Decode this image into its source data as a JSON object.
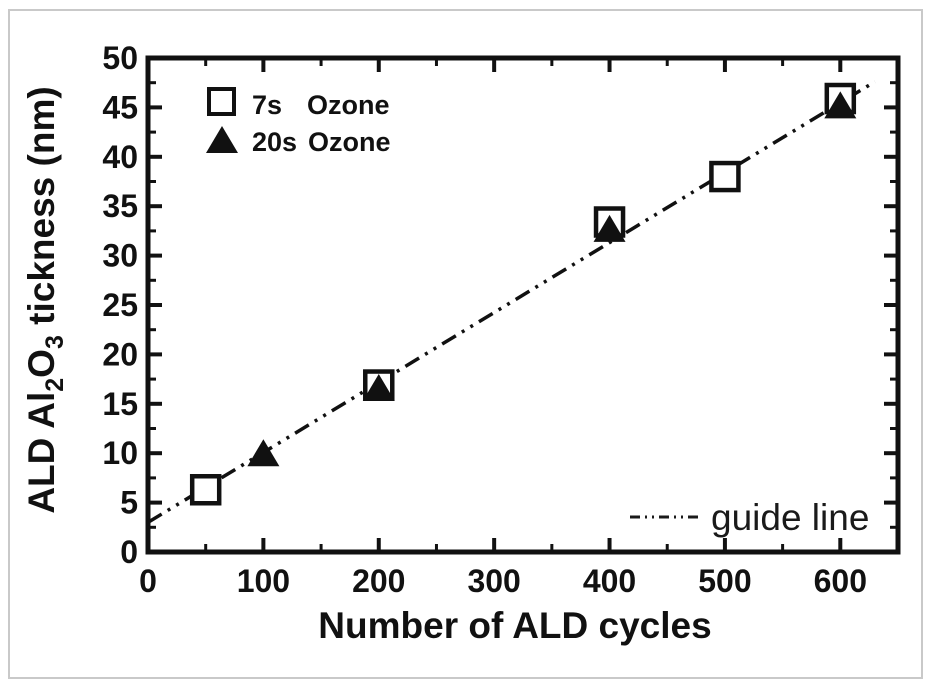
{
  "figure": {
    "background": "#ffffff",
    "border_color": "#c9c9c9",
    "ink_color": "#111111"
  },
  "chart_data": {
    "type": "scatter",
    "title": "",
    "xlabel": "Number of ALD cycles",
    "ylabel_plain": "ALD Al2O3 tickness (nm)",
    "ylabel_parts": {
      "pre": "ALD Al",
      "sub1": "2",
      "mid": "O",
      "sub2": "3",
      "post": " tickness (nm)"
    },
    "xlim": [
      0,
      650
    ],
    "ylim": [
      0,
      50
    ],
    "x_major_ticks": [
      0,
      100,
      200,
      300,
      400,
      500,
      600
    ],
    "x_minor_step": 50,
    "y_major_ticks": [
      0,
      5,
      10,
      15,
      20,
      25,
      30,
      35,
      40,
      45,
      50
    ],
    "y_minor_step": 2.5,
    "grid": false,
    "legend_position": "top-left",
    "series": [
      {
        "name": "7s Ozone",
        "duration_label": "7s",
        "gas_label": "Ozone",
        "marker": "open-square",
        "points": [
          [
            50,
            6.3
          ],
          [
            200,
            16.9
          ],
          [
            400,
            33.4
          ],
          [
            500,
            38.0
          ],
          [
            600,
            45.9
          ]
        ]
      },
      {
        "name": "20s Ozone",
        "duration_label": "20s",
        "gas_label": "Ozone",
        "marker": "filled-triangle",
        "points": [
          [
            100,
            10.0
          ],
          [
            200,
            16.6
          ],
          [
            400,
            32.7
          ],
          [
            600,
            45.2
          ]
        ]
      }
    ],
    "guide_line": {
      "label": "guide line",
      "style": "dash-dot-dot",
      "from": [
        0,
        3.0
      ],
      "to": [
        630,
        47.6
      ]
    }
  }
}
